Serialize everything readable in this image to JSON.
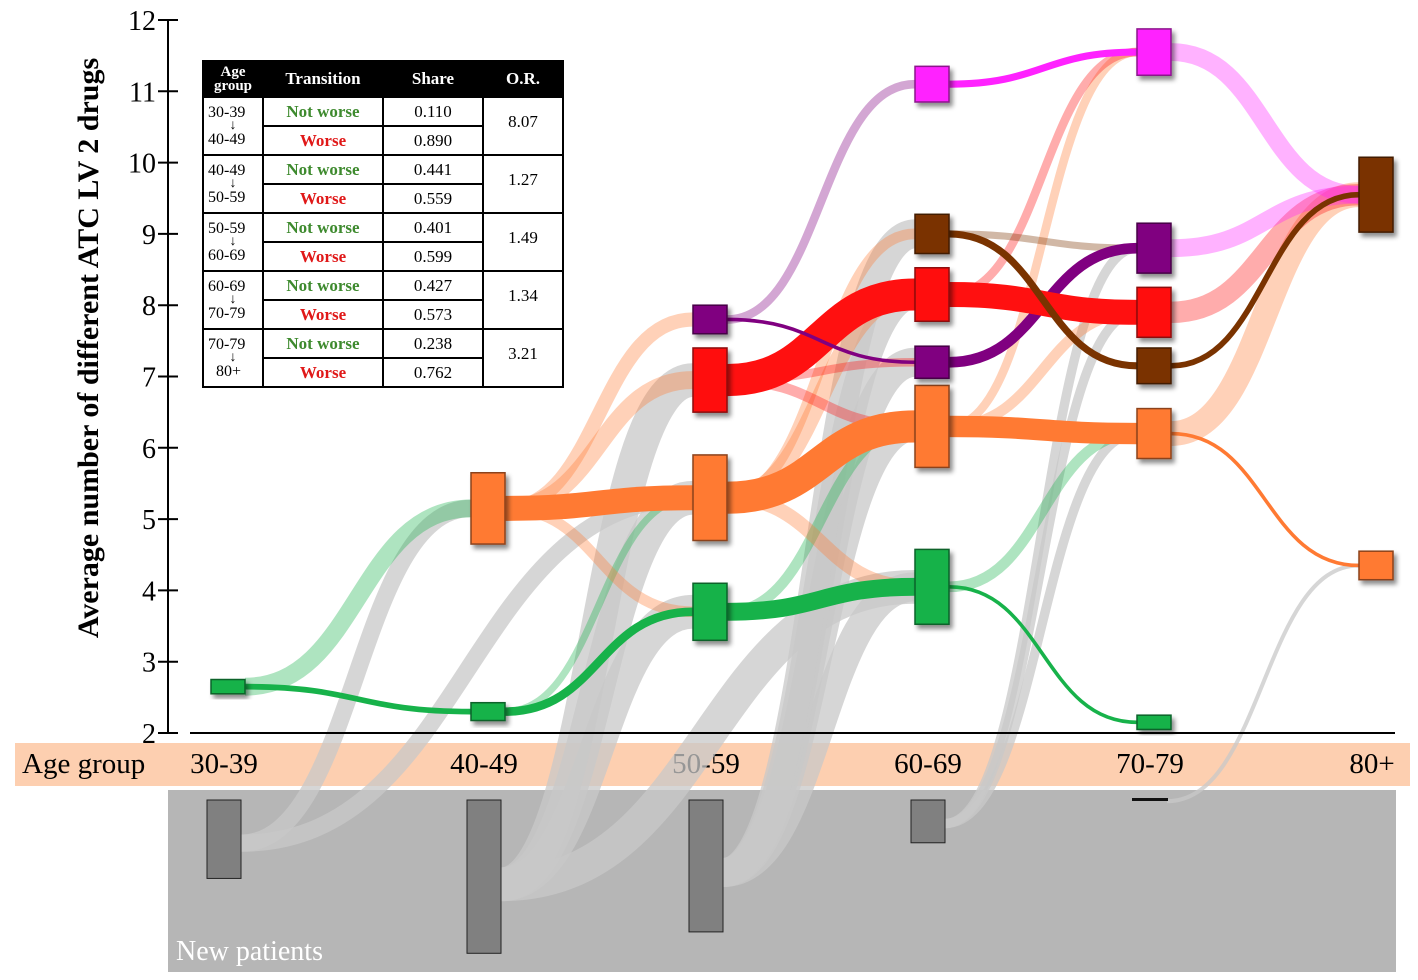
{
  "chart_data": {
    "type": "sankey",
    "ylabel": "Average number of different ATC LV 2 drugs",
    "y_ticks": [
      2,
      3,
      4,
      5,
      6,
      7,
      8,
      9,
      10,
      11,
      12
    ],
    "ylim": [
      2,
      12
    ],
    "x_axis_title": "Age group",
    "categories": [
      "30-39",
      "40-49",
      "50-59",
      "60-69",
      "70-79",
      "80+"
    ],
    "new_patients_label": "New patients",
    "colors": {
      "green": "#17b24a",
      "orange": "#ff7a33",
      "red": "#ff1010",
      "purple": "#800080",
      "brown": "#7a3300",
      "magenta": "#ff22ff",
      "gray_flow": "#c8c8c8",
      "new_box": "#808080",
      "band": "#fdcfb0",
      "new_area": "#b6b6b6"
    },
    "nodes": [
      {
        "group": "30-39",
        "value": 2.65,
        "color": "green",
        "size": 0.2
      },
      {
        "group": "40-49",
        "value": 2.3,
        "color": "green",
        "size": 0.25
      },
      {
        "group": "40-49",
        "value": 5.15,
        "color": "orange",
        "size": 1.0
      },
      {
        "group": "50-59",
        "value": 3.7,
        "color": "green",
        "size": 0.8
      },
      {
        "group": "50-59",
        "value": 5.3,
        "color": "orange",
        "size": 1.2
      },
      {
        "group": "50-59",
        "value": 6.95,
        "color": "red",
        "size": 0.9
      },
      {
        "group": "50-59",
        "value": 7.8,
        "color": "purple",
        "size": 0.4
      },
      {
        "group": "60-69",
        "value": 4.05,
        "color": "green",
        "size": 1.05
      },
      {
        "group": "60-69",
        "value": 6.3,
        "color": "orange",
        "size": 1.15
      },
      {
        "group": "60-69",
        "value": 7.2,
        "color": "purple",
        "size": 0.45
      },
      {
        "group": "60-69",
        "value": 8.15,
        "color": "red",
        "size": 0.75
      },
      {
        "group": "60-69",
        "value": 9.0,
        "color": "brown",
        "size": 0.55
      },
      {
        "group": "60-69",
        "value": 11.1,
        "color": "magenta",
        "size": 0.5
      },
      {
        "group": "70-79",
        "value": 2.15,
        "color": "green",
        "size": 0.2
      },
      {
        "group": "70-79",
        "value": 6.2,
        "color": "orange",
        "size": 0.7
      },
      {
        "group": "70-79",
        "value": 7.15,
        "color": "brown",
        "size": 0.5
      },
      {
        "group": "70-79",
        "value": 7.9,
        "color": "red",
        "size": 0.7
      },
      {
        "group": "70-79",
        "value": 8.8,
        "color": "purple",
        "size": 0.7
      },
      {
        "group": "70-79",
        "value": 11.55,
        "color": "magenta",
        "size": 0.65
      },
      {
        "group": "80+",
        "value": 4.35,
        "color": "orange",
        "size": 0.4
      },
      {
        "group": "80+",
        "value": 9.55,
        "color": "brown",
        "size": 1.05
      }
    ],
    "flows": [
      {
        "from": 0,
        "to": 1,
        "color": "green",
        "width": 0.08
      },
      {
        "from": 0,
        "to": 2,
        "color": "green",
        "width": 0.25,
        "faded": true
      },
      {
        "from": 1,
        "to": 3,
        "color": "green",
        "width": 0.12
      },
      {
        "from": 1,
        "to": 4,
        "color": "green",
        "width": 0.1,
        "faded": true
      },
      {
        "from": 2,
        "to": 4,
        "color": "orange",
        "width": 0.35
      },
      {
        "from": 2,
        "to": 5,
        "color": "orange",
        "width": 0.25,
        "faded": true
      },
      {
        "from": 2,
        "to": 6,
        "color": "orange",
        "width": 0.2,
        "faded": true
      },
      {
        "from": 2,
        "to": 3,
        "color": "orange",
        "width": 0.15,
        "faded": true
      },
      {
        "from": 3,
        "to": 7,
        "color": "green",
        "width": 0.25
      },
      {
        "from": 3,
        "to": 8,
        "color": "green",
        "width": 0.15,
        "faded": true
      },
      {
        "from": 4,
        "to": 8,
        "color": "orange",
        "width": 0.45
      },
      {
        "from": 4,
        "to": 7,
        "color": "orange",
        "width": 0.2,
        "faded": true
      },
      {
        "from": 4,
        "to": 10,
        "color": "orange",
        "width": 0.25,
        "faded": true
      },
      {
        "from": 4,
        "to": 11,
        "color": "orange",
        "width": 0.15,
        "faded": true
      },
      {
        "from": 5,
        "to": 10,
        "color": "red",
        "width": 0.45
      },
      {
        "from": 5,
        "to": 8,
        "color": "red",
        "width": 0.15,
        "faded": true
      },
      {
        "from": 5,
        "to": 9,
        "color": "red",
        "width": 0.12,
        "faded": true
      },
      {
        "from": 6,
        "to": 9,
        "color": "purple",
        "width": 0.05
      },
      {
        "from": 6,
        "to": 12,
        "color": "purple",
        "width": 0.12,
        "faded": true
      },
      {
        "from": 7,
        "to": 13,
        "color": "green",
        "width": 0.05
      },
      {
        "from": 7,
        "to": 14,
        "color": "green",
        "width": 0.15,
        "faded": true
      },
      {
        "from": 8,
        "to": 14,
        "color": "orange",
        "width": 0.3
      },
      {
        "from": 8,
        "to": 16,
        "color": "orange",
        "width": 0.15,
        "faded": true
      },
      {
        "from": 8,
        "to": 18,
        "color": "orange",
        "width": 0.12,
        "faded": true
      },
      {
        "from": 9,
        "to": 17,
        "color": "purple",
        "width": 0.15
      },
      {
        "from": 10,
        "to": 16,
        "color": "red",
        "width": 0.35
      },
      {
        "from": 10,
        "to": 18,
        "color": "red",
        "width": 0.12,
        "faded": true
      },
      {
        "from": 11,
        "to": 15,
        "color": "brown",
        "width": 0.1
      },
      {
        "from": 11,
        "to": 17,
        "color": "brown",
        "width": 0.1,
        "faded": true
      },
      {
        "from": 12,
        "to": 18,
        "color": "magenta",
        "width": 0.1
      },
      {
        "from": 14,
        "to": 19,
        "color": "orange",
        "width": 0.05
      },
      {
        "from": 14,
        "to": 20,
        "color": "orange",
        "width": 0.35,
        "faded": true
      },
      {
        "from": 15,
        "to": 20,
        "color": "brown",
        "width": 0.08
      },
      {
        "from": 16,
        "to": 20,
        "color": "red",
        "width": 0.3,
        "faded": true
      },
      {
        "from": 17,
        "to": 20,
        "color": "magenta",
        "width": 0.25,
        "faded": true
      },
      {
        "from": 18,
        "to": 20,
        "color": "magenta",
        "width": 0.25,
        "faded": true
      }
    ],
    "new_patient_boxes": [
      {
        "group": "30-39",
        "size": 1.1
      },
      {
        "group": "40-49",
        "size": 2.15
      },
      {
        "group": "50-59",
        "size": 1.85
      },
      {
        "group": "60-69",
        "size": 0.6
      },
      {
        "group": "70-79",
        "size": 0.03
      }
    ],
    "new_patient_flows": [
      {
        "from_box": 0,
        "to": 2
      },
      {
        "from_box": 0,
        "to": 4
      },
      {
        "from_box": 1,
        "to": 4
      },
      {
        "from_box": 1,
        "to": 3
      },
      {
        "from_box": 1,
        "to": 5
      },
      {
        "from_box": 1,
        "to": 7
      },
      {
        "from_box": 2,
        "to": 7
      },
      {
        "from_box": 2,
        "to": 8
      },
      {
        "from_box": 2,
        "to": 9
      },
      {
        "from_box": 2,
        "to": 10
      },
      {
        "from_box": 2,
        "to": 11
      },
      {
        "from_box": 3,
        "to": 14
      },
      {
        "from_box": 3,
        "to": 16
      },
      {
        "from_box": 3,
        "to": 17
      },
      {
        "from_box": 4,
        "to": 19
      }
    ]
  },
  "legend_table": {
    "headers": {
      "age_line1": "Age",
      "age_line2": "group",
      "transition": "Transition",
      "share": "Share",
      "or": "O.R."
    },
    "rows": [
      {
        "from": "30-39",
        "to": "40-49",
        "not_worse_label": "Not worse",
        "worse_label": "Worse",
        "not_worse_share": "0.110",
        "worse_share": "0.890",
        "odds_ratio": "8.07"
      },
      {
        "from": "40-49",
        "to": "50-59",
        "not_worse_label": "Not worse",
        "worse_label": "Worse",
        "not_worse_share": "0.441",
        "worse_share": "0.559",
        "odds_ratio": "1.27"
      },
      {
        "from": "50-59",
        "to": "60-69",
        "not_worse_label": "Not worse",
        "worse_label": "Worse",
        "not_worse_share": "0.401",
        "worse_share": "0.599",
        "odds_ratio": "1.49"
      },
      {
        "from": "60-69",
        "to": "70-79",
        "not_worse_label": "Not worse",
        "worse_label": "Worse",
        "not_worse_share": "0.427",
        "worse_share": "0.573",
        "odds_ratio": "1.34"
      },
      {
        "from": "70-79",
        "to": "80+",
        "not_worse_label": "Not worse",
        "worse_label": "Worse",
        "not_worse_share": "0.238",
        "worse_share": "0.762",
        "odds_ratio": "3.21"
      }
    ]
  }
}
